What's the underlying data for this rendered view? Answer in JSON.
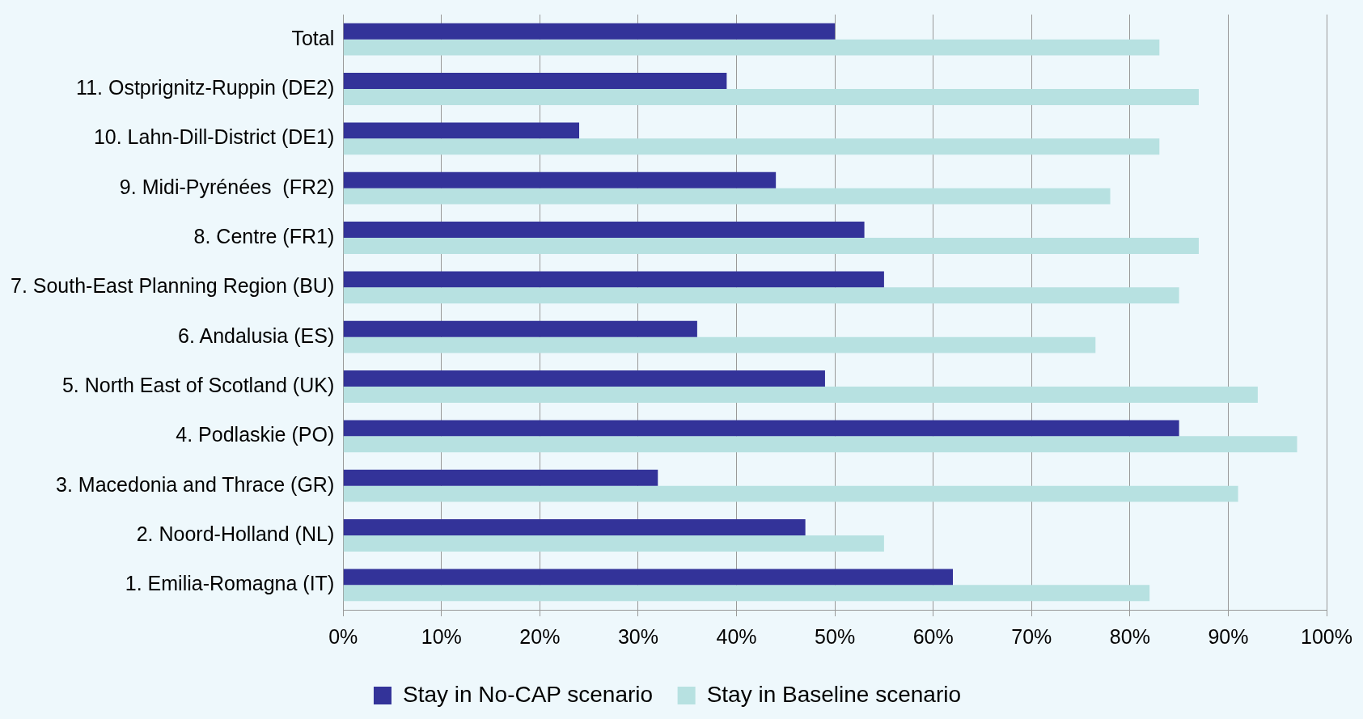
{
  "chart_data": {
    "type": "bar",
    "orientation": "horizontal",
    "categories": [
      "Total",
      "11. Ostprignitz-Ruppin (DE2)",
      "10. Lahn-Dill-District (DE1)",
      "9. Midi-Pyrénées  (FR2)",
      "8. Centre (FR1)",
      "7. South-East Planning Region (BU)",
      "6. Andalusia (ES)",
      "5. North East of Scotland (UK)",
      "4. Podlaskie (PO)",
      "3. Macedonia and Thrace (GR)",
      "2. Noord-Holland (NL)",
      "1. Emilia-Romagna (IT)"
    ],
    "series": [
      {
        "name": "Stay in No-CAP scenario",
        "color": "#333399",
        "values": [
          50,
          39,
          24,
          44,
          53,
          55,
          36,
          49,
          85,
          32,
          47,
          62
        ]
      },
      {
        "name": "Stay in Baseline scenario",
        "color": "#b7e1e1",
        "values": [
          83,
          87,
          83,
          78,
          87,
          85,
          76.5,
          93,
          97,
          91,
          55,
          82
        ]
      }
    ],
    "xlim": [
      0,
      100
    ],
    "xticks": [
      {
        "value": 0,
        "label": "0%"
      },
      {
        "value": 10,
        "label": "10%"
      },
      {
        "value": 20,
        "label": "20%"
      },
      {
        "value": 30,
        "label": "30%"
      },
      {
        "value": 40,
        "label": "40%"
      },
      {
        "value": 50,
        "label": "50%"
      },
      {
        "value": 60,
        "label": "60%"
      },
      {
        "value": 70,
        "label": "70%"
      },
      {
        "value": 80,
        "label": "80%"
      },
      {
        "value": 90,
        "label": "90%"
      },
      {
        "value": 100,
        "label": "100%"
      }
    ],
    "grid": "x",
    "legend": "bottom"
  }
}
